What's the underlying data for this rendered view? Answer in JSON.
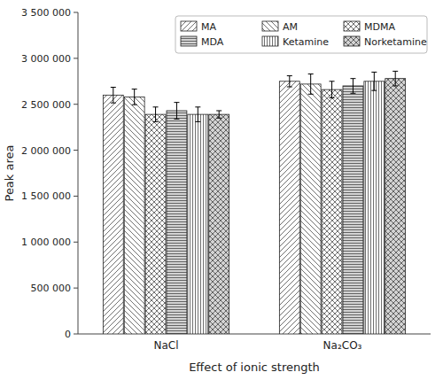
{
  "chart_data": {
    "type": "bar",
    "categories": [
      "NaCl",
      "Na₂CO₃"
    ],
    "series": [
      {
        "name": "MA",
        "color": "white",
        "values": [
          2600000,
          2750000
        ],
        "errors": [
          85000,
          60000
        ]
      },
      {
        "name": "AM",
        "color": "white",
        "values": [
          2580000,
          2720000
        ],
        "errors": [
          85000,
          110000
        ]
      },
      {
        "name": "MDMA",
        "color": "white",
        "values": [
          2390000,
          2660000
        ],
        "errors": [
          80000,
          90000
        ]
      },
      {
        "name": "MDA",
        "color": "lightgray",
        "values": [
          2430000,
          2700000
        ],
        "errors": [
          90000,
          80000
        ]
      },
      {
        "name": "Ketamine",
        "color": "white",
        "values": [
          2390000,
          2750000
        ],
        "errors": [
          80000,
          100000
        ]
      },
      {
        "name": "Norketamine",
        "color": "lightgray",
        "values": [
          2390000,
          2780000
        ],
        "errors": [
          40000,
          80000
        ]
      }
    ],
    "ylabel": "Peak area",
    "xlabel": "Effect of ionic strength",
    "ylim": [
      0,
      3500000
    ],
    "yticks": [
      0,
      {
        "value": 500000,
        "label": "500 000"
      },
      {
        "value": 1000000,
        "label": "1 000 000"
      },
      {
        "value": 1500000,
        "label": "1 500 000"
      },
      {
        "value": 2000000,
        "label": "2 000 000"
      },
      {
        "value": 2500000,
        "label": "2 500 000"
      },
      {
        "value": 3000000,
        "label": "3 000 000"
      },
      {
        "value": 3500000,
        "label": "3 500 000"
      }
    ],
    "grid": false,
    "legend": "upper right"
  }
}
